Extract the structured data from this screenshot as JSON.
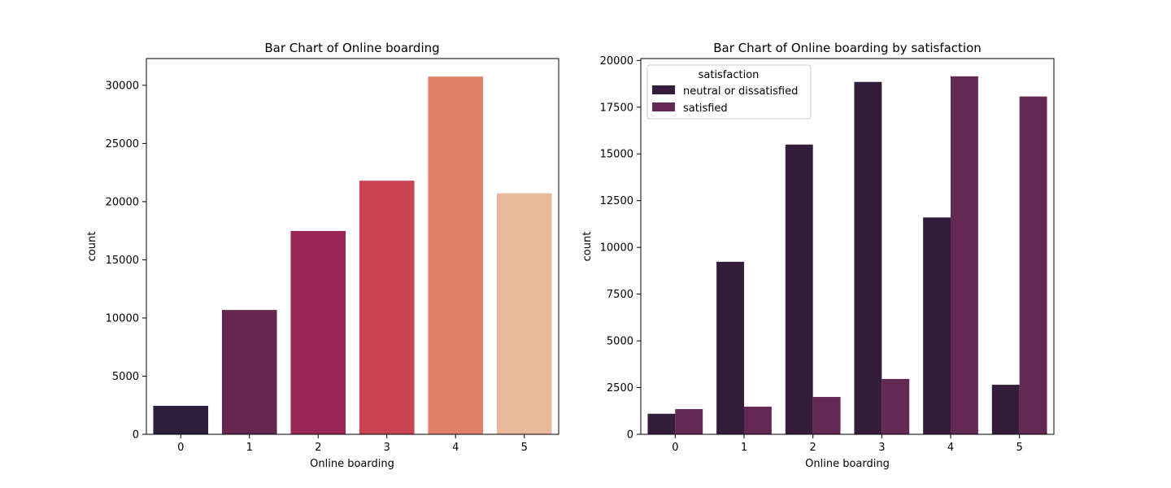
{
  "chart_data": [
    {
      "type": "bar",
      "title": "Bar Chart of Online boarding",
      "xlabel": "Online boarding",
      "ylabel": "count",
      "categories": [
        "0",
        "1",
        "2",
        "3",
        "4",
        "5"
      ],
      "values": [
        2450,
        10690,
        17480,
        21800,
        30750,
        20720
      ],
      "colors": [
        "#2e1e3b",
        "#65264f",
        "#9a2757",
        "#c94352",
        "#e08167",
        "#eab89b"
      ],
      "ylim": [
        0,
        32300
      ],
      "yticks": [
        0,
        5000,
        10000,
        15000,
        20000,
        25000,
        30000
      ],
      "ytick_labels": [
        "0",
        "5000",
        "10000",
        "15000",
        "20000",
        "25000",
        "30000"
      ],
      "grid": false,
      "legend": false
    },
    {
      "type": "bar",
      "title": "Bar Chart of Online boarding by satisfaction",
      "xlabel": "Online boarding",
      "ylabel": "count",
      "categories": [
        "0",
        "1",
        "2",
        "3",
        "4",
        "5"
      ],
      "series": [
        {
          "name": "neutral or dissatisfied",
          "color": "#331d3a",
          "values": [
            1100,
            9230,
            15500,
            18850,
            11600,
            2650
          ]
        },
        {
          "name": "satisfied",
          "color": "#632854",
          "values": [
            1350,
            1480,
            2000,
            2960,
            19150,
            18070
          ]
        }
      ],
      "ylim": [
        0,
        20100
      ],
      "yticks": [
        0,
        2500,
        5000,
        7500,
        10000,
        12500,
        15000,
        17500,
        20000
      ],
      "ytick_labels": [
        "0",
        "2500",
        "5000",
        "7500",
        "10000",
        "12500",
        "15000",
        "17500",
        "20000"
      ],
      "grid": false,
      "legend": {
        "title": "satisfaction",
        "placement": "top-left"
      }
    }
  ]
}
